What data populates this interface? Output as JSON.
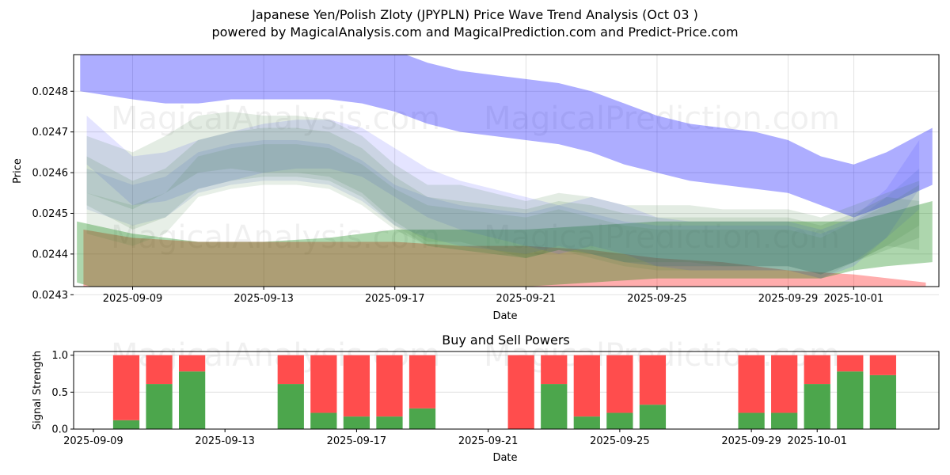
{
  "header": {
    "title": "Japanese Yen/Polish Zloty (JPYPLN) Price Wave Trend Analysis (Oct 03 )",
    "subtitle": "powered by MagicalAnalysis.com and MagicalPrediction.com and Predict-Price.com"
  },
  "watermarks": [
    "MagicalAnalysis.com",
    "MagicalPrediction.com"
  ],
  "chart_data": [
    {
      "type": "area",
      "title": "",
      "xlabel": "Date",
      "ylabel": "Price",
      "x_start": "2025-09-08",
      "x_end": "2025-10-04",
      "x_range_days": [
        -0.8,
        25.6
      ],
      "ylim": [
        0.02432,
        0.02489
      ],
      "xticks": [
        {
          "day": 1,
          "label": "2025-09-09"
        },
        {
          "day": 5,
          "label": "2025-09-13"
        },
        {
          "day": 9,
          "label": "2025-09-17"
        },
        {
          "day": 13,
          "label": "2025-09-21"
        },
        {
          "day": 17,
          "label": "2025-09-25"
        },
        {
          "day": 21,
          "label": "2025-09-29"
        },
        {
          "day": 23,
          "label": "2025-10-01"
        }
      ],
      "yticks": [
        {
          "value": 0.0243,
          "label": "0.0243"
        },
        {
          "value": 0.0244,
          "label": "0.0244"
        },
        {
          "value": 0.0245,
          "label": "0.0245"
        },
        {
          "value": 0.0246,
          "label": "0.0246"
        },
        {
          "value": 0.0247,
          "label": "0.0247"
        },
        {
          "value": 0.0248,
          "label": "0.0248"
        }
      ],
      "grid": true,
      "bands": [
        {
          "name": "upper-blue-trend-band",
          "color": "#0000ff",
          "opacity": 0.32,
          "x": [
            -0.6,
            1,
            2,
            3,
            4,
            5,
            6,
            7,
            8,
            9,
            10,
            11,
            12,
            13,
            14,
            15,
            16,
            17,
            18,
            19,
            20,
            21,
            22,
            23,
            24,
            25.4
          ],
          "upper": [
            0.0249,
            0.02491,
            0.02491,
            0.02491,
            0.02491,
            0.02491,
            0.02491,
            0.02491,
            0.02491,
            0.0249,
            0.02487,
            0.02485,
            0.02484,
            0.02483,
            0.02482,
            0.0248,
            0.02477,
            0.02474,
            0.02472,
            0.02471,
            0.0247,
            0.02468,
            0.02464,
            0.02462,
            0.02465,
            0.02471
          ],
          "lower": [
            0.0248,
            0.02478,
            0.02477,
            0.02477,
            0.02478,
            0.02478,
            0.02478,
            0.02478,
            0.02477,
            0.02475,
            0.02472,
            0.0247,
            0.02469,
            0.02468,
            0.02467,
            0.02465,
            0.02462,
            0.0246,
            0.02458,
            0.02457,
            0.02456,
            0.02455,
            0.02452,
            0.02449,
            0.02452,
            0.02457
          ]
        },
        {
          "name": "lower-red-trend-band",
          "color": "#ff0000",
          "opacity": 0.32,
          "x": [
            -0.5,
            1,
            3,
            5,
            7,
            9,
            11,
            13,
            15,
            17,
            19,
            21,
            23,
            25.2
          ],
          "upper": [
            0.02446,
            0.02444,
            0.02443,
            0.02443,
            0.02443,
            0.02443,
            0.02442,
            0.02442,
            0.02441,
            0.02439,
            0.02438,
            0.02436,
            0.02435,
            0.02433
          ],
          "lower": [
            0.0243,
            0.02429,
            0.02428,
            0.02428,
            0.02427,
            0.02427,
            0.02426,
            0.02426,
            0.02425,
            0.02424,
            0.02423,
            0.02422,
            0.02421,
            0.02419
          ]
        },
        {
          "name": "lower-green-trend-band",
          "color": "#008000",
          "opacity": 0.32,
          "x": [
            -0.7,
            1,
            3,
            5,
            7,
            8,
            9,
            11,
            13,
            15,
            17,
            19,
            21,
            22,
            23,
            24,
            25.4
          ],
          "upper": [
            0.02448,
            0.02445,
            0.02443,
            0.02443,
            0.02444,
            0.02445,
            0.02446,
            0.02446,
            0.02446,
            0.02447,
            0.02448,
            0.02448,
            0.02448,
            0.02448,
            0.02448,
            0.0245,
            0.02453
          ],
          "lower": [
            0.02433,
            0.02429,
            0.02427,
            0.02428,
            0.02429,
            0.0243,
            0.02431,
            0.02432,
            0.02432,
            0.02433,
            0.02434,
            0.02434,
            0.02434,
            0.02434,
            0.02436,
            0.02437,
            0.02438
          ]
        }
      ],
      "wave_lines": [
        {
          "color": "#4040ff",
          "opacity": 0.14,
          "width": 0.00012,
          "x": [
            -0.4,
            1,
            2,
            3,
            4,
            5,
            6,
            7,
            8,
            9,
            10,
            11,
            12,
            13,
            14,
            15,
            16,
            17,
            18,
            19,
            20,
            21,
            22,
            23,
            24,
            25
          ],
          "y": [
            0.02468,
            0.02458,
            0.02459,
            0.02462,
            0.02464,
            0.02466,
            0.02467,
            0.02467,
            0.02465,
            0.0246,
            0.02455,
            0.02452,
            0.0245,
            0.02448,
            0.02446,
            0.02448,
            0.02446,
            0.02443,
            0.02442,
            0.02442,
            0.02442,
            0.02442,
            0.0244,
            0.02443,
            0.0245,
            0.02462
          ]
        },
        {
          "color": "#3a7a3a",
          "opacity": 0.14,
          "width": 0.00014,
          "x": [
            -0.4,
            1,
            2,
            3,
            4,
            5,
            6,
            7,
            8,
            9,
            10,
            11,
            12,
            13,
            14,
            15,
            16,
            17,
            18,
            19,
            20,
            21,
            22,
            23,
            24,
            25
          ],
          "y": [
            0.02462,
            0.02458,
            0.02462,
            0.02467,
            0.02468,
            0.02467,
            0.02467,
            0.02466,
            0.02462,
            0.02455,
            0.0245,
            0.0245,
            0.02448,
            0.02446,
            0.02448,
            0.02447,
            0.02445,
            0.02445,
            0.02445,
            0.02444,
            0.02444,
            0.02444,
            0.02442,
            0.02445,
            0.02448,
            0.02451
          ]
        },
        {
          "color": "#3a7a3a",
          "opacity": 0.14,
          "width": 0.00012,
          "x": [
            -0.4,
            1,
            2,
            3,
            4,
            5,
            6,
            7,
            8,
            9,
            10,
            11,
            12,
            13,
            14,
            15,
            16,
            17,
            18,
            19,
            20,
            21,
            22,
            23,
            24,
            25
          ],
          "y": [
            0.02458,
            0.02452,
            0.02455,
            0.02462,
            0.02464,
            0.02465,
            0.02465,
            0.02464,
            0.0246,
            0.02453,
            0.02448,
            0.02447,
            0.02446,
            0.02445,
            0.02447,
            0.02446,
            0.02444,
            0.02443,
            0.02443,
            0.02443,
            0.02443,
            0.02443,
            0.02441,
            0.02444,
            0.02448,
            0.02447
          ]
        },
        {
          "color": "#4060c0",
          "opacity": 0.14,
          "width": 0.0001,
          "x": [
            -0.4,
            1,
            2,
            3,
            4,
            5,
            6,
            7,
            8,
            9,
            10,
            11,
            12,
            13,
            14,
            15,
            16,
            17,
            18,
            19,
            20,
            21,
            22,
            23,
            24,
            25
          ],
          "y": [
            0.02456,
            0.02452,
            0.02454,
            0.0246,
            0.02462,
            0.02463,
            0.02463,
            0.02462,
            0.02458,
            0.02452,
            0.02449,
            0.02447,
            0.02446,
            0.02445,
            0.02447,
            0.02445,
            0.02443,
            0.02442,
            0.02442,
            0.02442,
            0.02442,
            0.02442,
            0.0244,
            0.02443,
            0.02449,
            0.02456
          ]
        },
        {
          "color": "#3a7a3a",
          "opacity": 0.12,
          "width": 0.0001,
          "x": [
            -0.4,
            1,
            2,
            3,
            4,
            5,
            6,
            7,
            8,
            9,
            10,
            11,
            12,
            13,
            14,
            15,
            16,
            17,
            18,
            19,
            20,
            21,
            22,
            23,
            24,
            25
          ],
          "y": [
            0.0245,
            0.02447,
            0.0245,
            0.02459,
            0.02461,
            0.02462,
            0.02462,
            0.02461,
            0.02457,
            0.02451,
            0.02447,
            0.02446,
            0.02445,
            0.02444,
            0.02446,
            0.02444,
            0.02442,
            0.02441,
            0.02441,
            0.02441,
            0.02441,
            0.02441,
            0.02439,
            0.02443,
            0.02447,
            0.02452
          ]
        }
      ]
    },
    {
      "type": "bar",
      "stacked": true,
      "title": "Buy and Sell Powers",
      "xlabel": "Date",
      "ylabel": "Signal Strength",
      "x_range_days": [
        -0.6,
        25.7
      ],
      "ylim": [
        0,
        1.05
      ],
      "xticks": [
        {
          "day": 0,
          "label": "2025-09-09"
        },
        {
          "day": 4,
          "label": "2025-09-13"
        },
        {
          "day": 8,
          "label": "2025-09-17"
        },
        {
          "day": 12,
          "label": "2025-09-21"
        },
        {
          "day": 16,
          "label": "2025-09-25"
        },
        {
          "day": 20,
          "label": "2025-09-29"
        },
        {
          "day": 22,
          "label": "2025-10-01"
        }
      ],
      "yticks": [
        {
          "value": 0.0,
          "label": "0.0"
        },
        {
          "value": 0.5,
          "label": "0.5"
        },
        {
          "value": 1.0,
          "label": "1.0"
        }
      ],
      "grid": true,
      "categories": [
        "2025-09-10",
        "2025-09-11",
        "2025-09-12",
        "2025-09-15",
        "2025-09-16",
        "2025-09-17",
        "2025-09-18",
        "2025-09-19",
        "2025-09-22",
        "2025-09-23",
        "2025-09-24",
        "2025-09-25",
        "2025-09-26",
        "2025-09-29",
        "2025-09-30",
        "2025-10-01",
        "2025-10-02",
        "2025-10-03"
      ],
      "day_index": [
        1,
        2,
        3,
        6,
        7,
        8,
        9,
        10,
        13,
        14,
        15,
        16,
        17,
        20,
        21,
        22,
        23,
        24
      ],
      "series": [
        {
          "name": "Buy",
          "color": "#4ca64c",
          "values": [
            0.12,
            0.61,
            0.78,
            0.61,
            0.22,
            0.17,
            0.17,
            0.28,
            0.0,
            0.61,
            0.17,
            0.22,
            0.33,
            0.22,
            0.22,
            0.61,
            0.78,
            0.73
          ]
        },
        {
          "name": "Sell",
          "color": "#ff4d4d",
          "values": [
            0.88,
            0.39,
            0.22,
            0.39,
            0.78,
            0.83,
            0.83,
            0.72,
            1.0,
            0.39,
            0.83,
            0.78,
            0.67,
            0.78,
            0.78,
            0.39,
            0.22,
            0.27
          ]
        }
      ]
    }
  ]
}
